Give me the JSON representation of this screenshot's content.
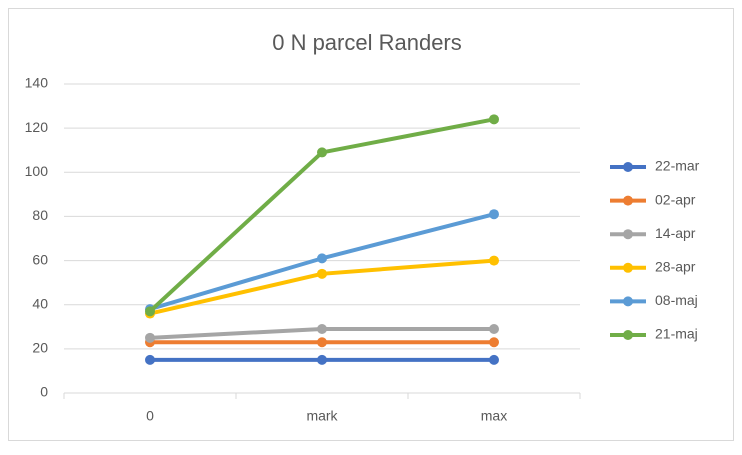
{
  "chart_data": {
    "type": "line",
    "title": "0 N parcel Randers",
    "categories": [
      "0",
      "mark",
      "max"
    ],
    "series": [
      {
        "name": "22-mar",
        "color": "#4472c4",
        "values": [
          15,
          15,
          15
        ]
      },
      {
        "name": "02-apr",
        "color": "#ed7d31",
        "values": [
          23,
          23,
          23
        ]
      },
      {
        "name": "14-apr",
        "color": "#a5a5a5",
        "values": [
          25,
          29,
          29
        ]
      },
      {
        "name": "28-apr",
        "color": "#ffc000",
        "values": [
          36,
          54,
          60
        ]
      },
      {
        "name": "08-maj",
        "color": "#5b9bd5",
        "values": [
          38,
          61,
          81
        ]
      },
      {
        "name": "21-maj",
        "color": "#70ad47",
        "values": [
          37,
          109,
          124
        ]
      }
    ],
    "ylim": [
      0,
      140
    ],
    "yticks": [
      0,
      20,
      40,
      60,
      80,
      100,
      120,
      140
    ],
    "grid": true,
    "legend": "right"
  }
}
